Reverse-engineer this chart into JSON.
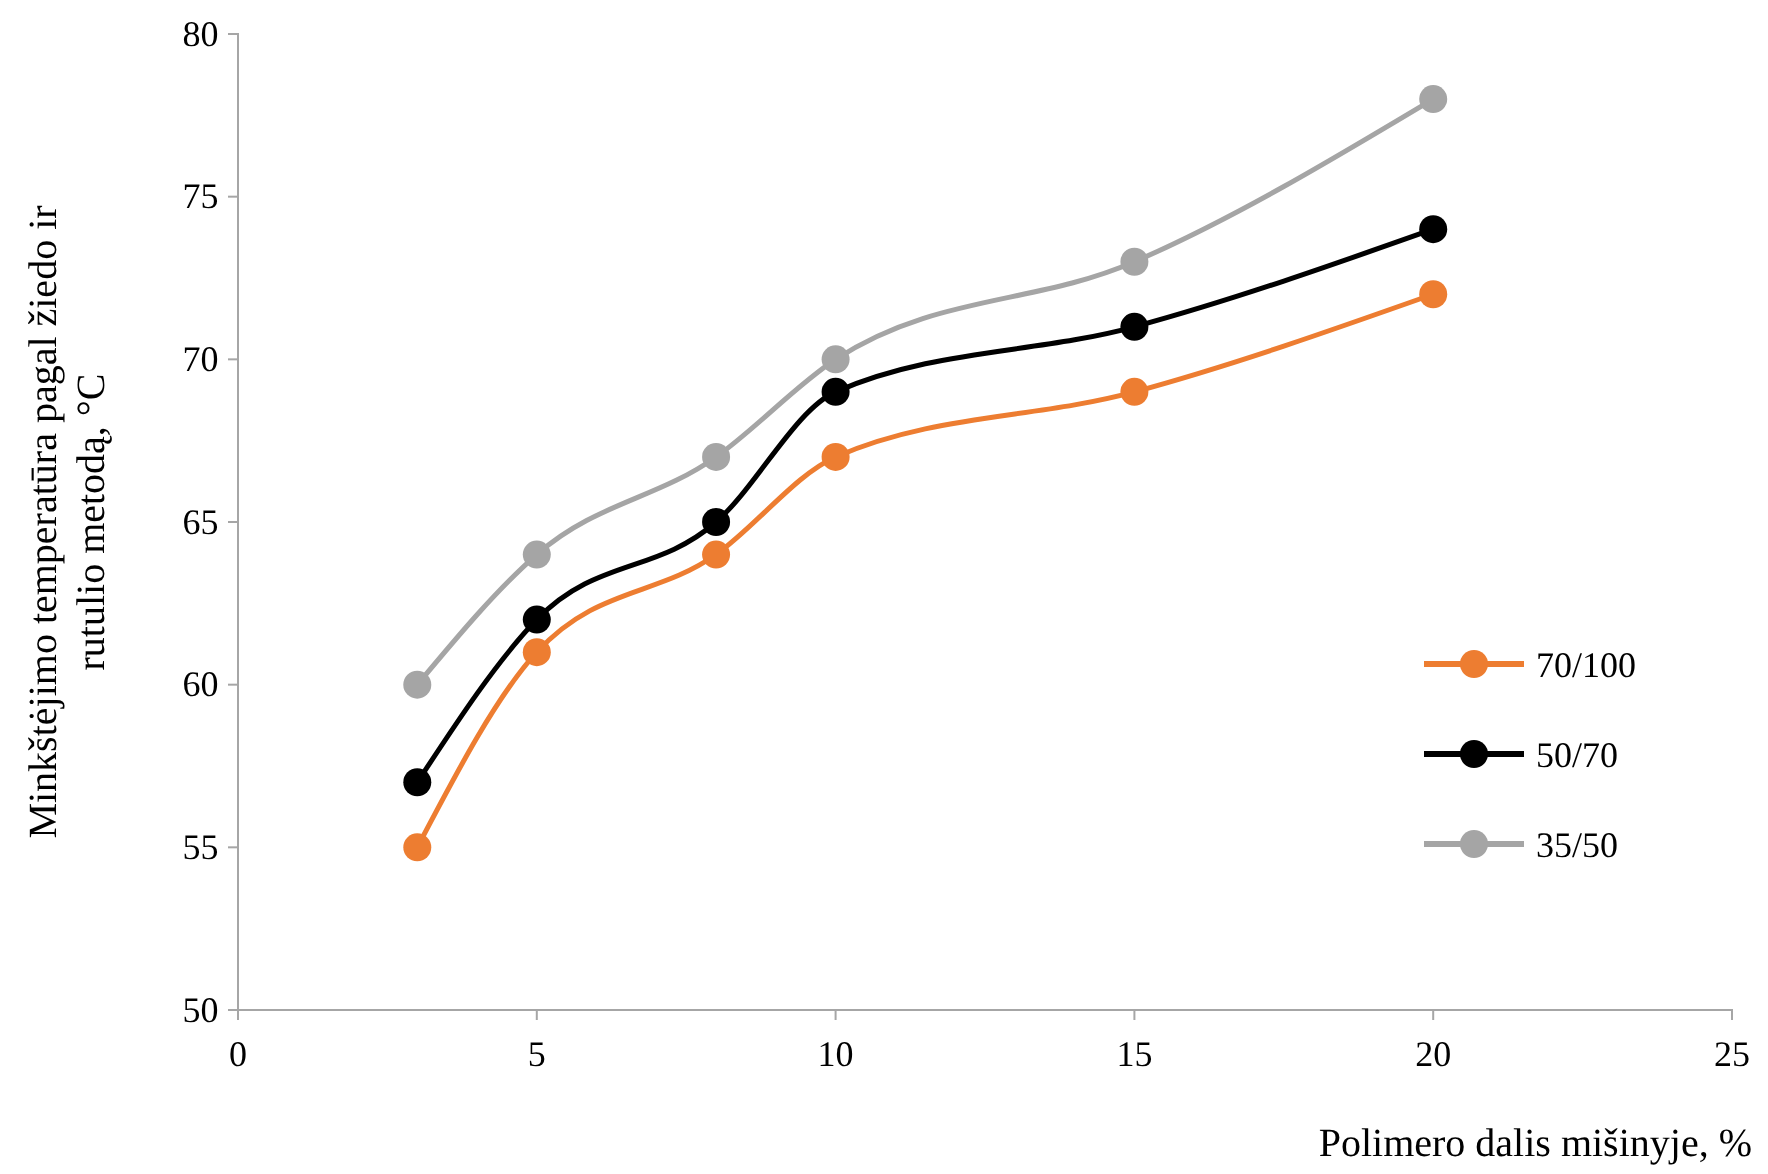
{
  "chart_data": {
    "type": "line",
    "xlabel": "Polimero dalis mišinyje, %",
    "ylabel": "Minkštėjimo temperatūra pagal žiedo ir\nrutulio metodą, °C",
    "x": [
      3,
      5,
      8,
      10,
      15,
      20
    ],
    "series": [
      {
        "name": "70/100",
        "color": "#ed7d31",
        "values": [
          55,
          61,
          64,
          67,
          69,
          72
        ]
      },
      {
        "name": "50/70",
        "color": "#000000",
        "values": [
          57,
          62,
          65,
          69,
          71,
          74
        ]
      },
      {
        "name": "35/50",
        "color": "#a5a5a5",
        "values": [
          60,
          64,
          67,
          70,
          73,
          78
        ]
      }
    ],
    "xlim": [
      0,
      25
    ],
    "xticks": [
      0,
      5,
      10,
      15,
      20,
      25
    ],
    "ylim": [
      50,
      80
    ],
    "yticks": [
      50,
      55,
      60,
      65,
      70,
      75,
      80
    ],
    "grid": false,
    "legend": "right",
    "marker": "circle",
    "line_style": "solid"
  }
}
